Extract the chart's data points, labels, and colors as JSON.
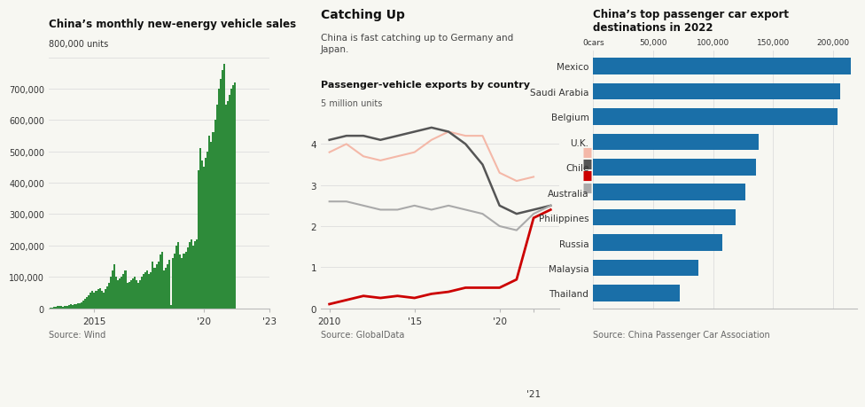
{
  "chart1": {
    "title": "China’s monthly new-energy vehicle sales",
    "source": "Source: Wind",
    "bar_color": "#2e8b3a",
    "yticks": [
      0,
      100000,
      200000,
      300000,
      400000,
      500000,
      600000,
      700000,
      800000
    ],
    "data": [
      1200,
      2500,
      3800,
      4500,
      6000,
      7000,
      6500,
      5500,
      7000,
      8000,
      11000,
      14000,
      10000,
      12000,
      13000,
      15000,
      17000,
      20000,
      25000,
      30000,
      35000,
      40000,
      50000,
      55000,
      50000,
      55000,
      60000,
      65000,
      55000,
      50000,
      60000,
      70000,
      80000,
      100000,
      120000,
      140000,
      100000,
      90000,
      95000,
      100000,
      110000,
      120000,
      80000,
      85000,
      90000,
      95000,
      100000,
      90000,
      80000,
      90000,
      100000,
      110000,
      115000,
      120000,
      110000,
      115000,
      150000,
      130000,
      140000,
      150000,
      170000,
      180000,
      120000,
      130000,
      140000,
      155000,
      10000,
      160000,
      175000,
      200000,
      210000,
      170000,
      160000,
      175000,
      180000,
      195000,
      210000,
      220000,
      200000,
      215000,
      220000,
      440000,
      510000,
      470000,
      450000,
      480000,
      500000,
      550000,
      530000,
      560000,
      600000,
      650000,
      700000,
      730000,
      760000,
      780000,
      650000,
      660000,
      680000,
      700000,
      710000,
      720000
    ]
  },
  "chart2": {
    "title": "Catching Up",
    "subtitle": "China is fast catching up to Germany and\nJapan.",
    "subtitle2": "Passenger-vehicle exports by country",
    "ylabel": "5 million units",
    "source": "Source: GlobalData",
    "years": [
      2010,
      2011,
      2012,
      2013,
      2014,
      2015,
      2016,
      2017,
      2018,
      2019,
      2020,
      2021,
      2022,
      2023
    ],
    "japan": [
      3.8,
      4.0,
      3.7,
      3.6,
      3.7,
      3.8,
      4.1,
      4.3,
      4.2,
      4.2,
      3.3,
      3.1,
      3.2,
      null
    ],
    "germany": [
      4.1,
      4.2,
      4.2,
      4.1,
      4.2,
      4.3,
      4.4,
      4.3,
      4.0,
      3.5,
      2.5,
      2.3,
      2.4,
      2.5
    ],
    "china": [
      0.1,
      0.2,
      0.3,
      0.25,
      0.3,
      0.25,
      0.35,
      0.4,
      0.5,
      0.5,
      0.5,
      0.7,
      2.2,
      2.4
    ],
    "korea": [
      2.6,
      2.6,
      2.5,
      2.4,
      2.4,
      2.5,
      2.4,
      2.5,
      2.4,
      2.3,
      2.0,
      1.9,
      2.3,
      2.5
    ],
    "japan_color": "#f4b8a8",
    "germany_color": "#555555",
    "china_color": "#cc0000",
    "korea_color": "#aaaaaa"
  },
  "chart3": {
    "title": "China’s top passenger car export\ndestinations in 2022",
    "source": "Source: China Passenger Car Association",
    "bar_color": "#1a6fa8",
    "categories": [
      "Mexico",
      "Saudi Arabia",
      "Belgium",
      "U.K.",
      "Chile",
      "Australia",
      "Philippines",
      "Russia",
      "Malaysia",
      "Thailand"
    ],
    "values": [
      215000,
      206000,
      204000,
      138000,
      136000,
      127000,
      119000,
      108000,
      88000,
      72000
    ],
    "xticks": [
      0,
      50000,
      100000,
      150000,
      200000
    ],
    "xtick_labels": [
      "0cars",
      "50,000",
      "100,000",
      "150,000",
      "200,000"
    ]
  },
  "bg_color": "#f7f7f2"
}
